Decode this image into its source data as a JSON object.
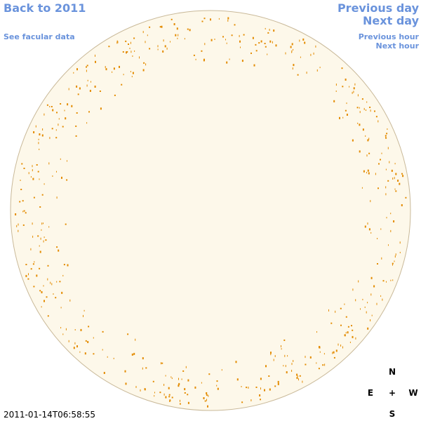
{
  "nav": {
    "back_year": "Back to 2011",
    "previous_day": "Previous day",
    "next_day": "Next day",
    "facular_data": "See facular data",
    "previous_hour": "Previous hour",
    "next_hour": "Next hour"
  },
  "timestamp": "2011-01-14T06:58:55",
  "compass": {
    "north": "N",
    "east": "E",
    "center": "+",
    "west": "W",
    "south": "S"
  }
}
